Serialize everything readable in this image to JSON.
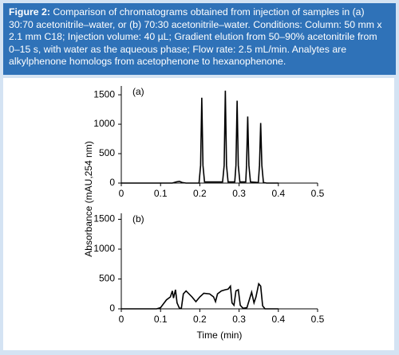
{
  "figure": {
    "label": "Figure 2:",
    "caption": "Comparison of chromatograms obtained from injection of samples in (a) 30:70 acetonitrile–water, or (b) 70:30 acetonitrile–water. Conditions: Column: 50 mm x 2.1 mm C18; Injection volume: 40 µL; Gradient elution from 50–90% acetonitrile from 0–15 s, with water as the aqueous phase; Flow rate: 2.5 mL/min. Analytes are alkylphenone homologs from acetophenone to hexanophenone."
  },
  "chart_data": [
    {
      "type": "line",
      "panel_label": "(a)",
      "ylabel": "Absorbance (mAU,254 nm)",
      "color": "#000000",
      "x": [
        0,
        0.13,
        0.14,
        0.148,
        0.155,
        0.165,
        0.198,
        0.202,
        0.205,
        0.208,
        0.212,
        0.258,
        0.262,
        0.265,
        0.268,
        0.272,
        0.289,
        0.292,
        0.295,
        0.298,
        0.302,
        0.317,
        0.319,
        0.322,
        0.325,
        0.329,
        0.349,
        0.352,
        0.355,
        0.358,
        0.362,
        0.37,
        0.4
      ],
      "values": [
        0,
        0,
        20,
        30,
        10,
        0,
        0,
        300,
        1450,
        300,
        20,
        20,
        300,
        1570,
        300,
        20,
        20,
        300,
        1400,
        300,
        20,
        20,
        300,
        1130,
        300,
        20,
        10,
        300,
        1020,
        300,
        10,
        0,
        0
      ],
      "xlim": [
        0,
        0.5
      ],
      "xticks": [
        0,
        0.1,
        0.2,
        0.3,
        0.4,
        0.5
      ],
      "ylim": [
        0,
        1650
      ],
      "yticks": [
        0,
        500,
        1000,
        1500
      ]
    },
    {
      "type": "line",
      "panel_label": "(b)",
      "xlabel": "Time (min)",
      "color": "#000000",
      "x": [
        0,
        0.09,
        0.1,
        0.115,
        0.125,
        0.13,
        0.133,
        0.138,
        0.142,
        0.148,
        0.153,
        0.158,
        0.165,
        0.18,
        0.19,
        0.2,
        0.21,
        0.225,
        0.235,
        0.24,
        0.245,
        0.255,
        0.265,
        0.272,
        0.278,
        0.282,
        0.287,
        0.292,
        0.298,
        0.303,
        0.31,
        0.32,
        0.326,
        0.332,
        0.338,
        0.343,
        0.35,
        0.355,
        0.36,
        0.366,
        0.4
      ],
      "values": [
        0,
        0,
        20,
        150,
        200,
        300,
        180,
        320,
        100,
        10,
        10,
        250,
        300,
        200,
        120,
        200,
        260,
        250,
        200,
        120,
        250,
        300,
        320,
        330,
        380,
        100,
        60,
        300,
        320,
        60,
        10,
        20,
        150,
        280,
        100,
        200,
        420,
        380,
        50,
        0,
        0
      ],
      "xlim": [
        0,
        0.5
      ],
      "xticks": [
        0,
        0.1,
        0.2,
        0.3,
        0.4,
        0.5
      ],
      "ylim": [
        0,
        1600
      ],
      "yticks": [
        0,
        500,
        1000,
        1500
      ]
    }
  ]
}
